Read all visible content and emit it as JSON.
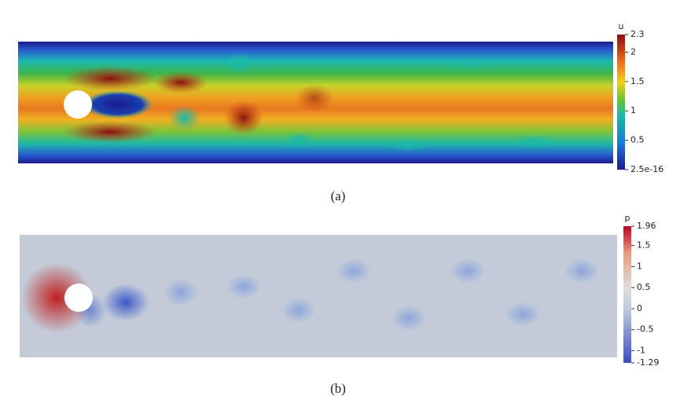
{
  "panels": [
    {
      "caption": "(a)",
      "colorbar": {
        "label": "u",
        "lim": [
          2.5e-16,
          2.3
        ],
        "ticks": [
          2.5e-16,
          0.5,
          1,
          1.5,
          2,
          2.3
        ]
      }
    },
    {
      "caption": "(b)",
      "colorbar": {
        "label": "p",
        "lim": [
          -1.29,
          1.96
        ],
        "ticks": [
          -1.29,
          -1,
          -0.5,
          0,
          0.5,
          1,
          1.5,
          1.96
        ]
      }
    }
  ]
}
